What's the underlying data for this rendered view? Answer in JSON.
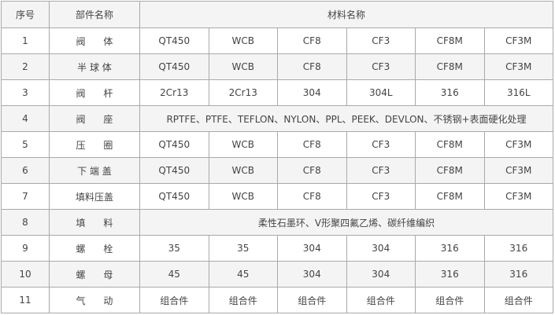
{
  "header": {
    "no": "序号",
    "part": "部件名称",
    "material": "材料名称"
  },
  "rows": [
    {
      "no": "1",
      "part": "阀      体",
      "materials": [
        "QT450",
        "WCB",
        "CF8",
        "CF3",
        "CF8M",
        "CF3M"
      ]
    },
    {
      "no": "2",
      "part": "半 球 体",
      "materials": [
        "QT450",
        "WCB",
        "CF8",
        "CF3",
        "CF8M",
        "CF3M"
      ]
    },
    {
      "no": "3",
      "part": "阀      杆",
      "materials": [
        "2Cr13",
        "2Cr13",
        "304",
        "304L",
        "316",
        "316L"
      ]
    },
    {
      "no": "4",
      "part": "阀      座",
      "span": "RPTFE、PTFE、TEFLON、NYLON、PPL、PEEK、DEVLON、不锈钢+表面硬化处理"
    },
    {
      "no": "5",
      "part": "压      圈",
      "materials": [
        "QT450",
        "WCB",
        "CF8",
        "CF3",
        "CF8M",
        "CF3M"
      ]
    },
    {
      "no": "6",
      "part": "下 端 盖",
      "materials": [
        "QT450",
        "WCB",
        "CF8",
        "CF3",
        "CF8M",
        "CF3M"
      ]
    },
    {
      "no": "7",
      "part": "填料压盖",
      "materials": [
        "QT450",
        "WCB",
        "CF8",
        "CF3",
        "CF8M",
        "CF3M"
      ]
    },
    {
      "no": "8",
      "part": "填      料",
      "span": "柔性石墨环、V形聚四氟乙烯、碳纤维编织"
    },
    {
      "no": "9",
      "part": "螺      栓",
      "materials": [
        "35",
        "35",
        "304",
        "304",
        "316",
        "316"
      ]
    },
    {
      "no": "10",
      "part": "螺      母",
      "materials": [
        "45",
        "45",
        "304",
        "304",
        "316",
        "316"
      ]
    },
    {
      "no": "11",
      "part": "气      动",
      "materials": [
        "组合件",
        "组合件",
        "组合件",
        "组合件",
        "组合件",
        "组合件"
      ]
    }
  ],
  "colors": {
    "header_bg": "#f4f4f4",
    "stripe_bg": "#f4f4f4",
    "border": "#a9a9a9",
    "text": "#444444"
  }
}
